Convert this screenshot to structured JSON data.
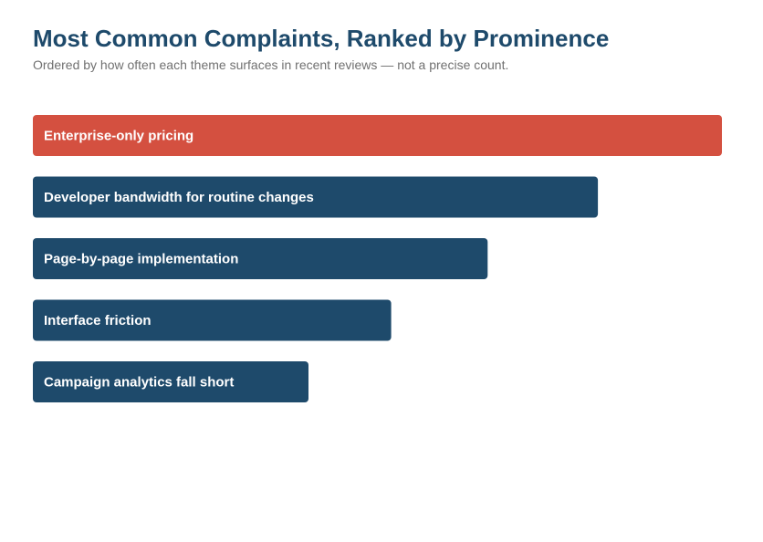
{
  "chart_data": {
    "type": "bar",
    "orientation": "horizontal",
    "title": "Most Common Complaints, Ranked by Prominence",
    "subtitle": "Ordered by how often each theme surfaces in recent reviews — not a precise count.",
    "categories": [
      "Enterprise-only pricing",
      "Developer bandwidth for routine changes",
      "Page-by-page implementation",
      "Interface friction",
      "Campaign analytics fall short"
    ],
    "values": [
      100,
      82,
      66,
      52,
      40
    ],
    "highlight_index": 0,
    "grid": false,
    "axes_visible": false,
    "legend": "none"
  },
  "colors": {
    "highlight": "#d45040",
    "bar": "#1e4a6b",
    "title": "#1e4a6b",
    "subtitle": "#707070",
    "label": "#ffffff"
  }
}
